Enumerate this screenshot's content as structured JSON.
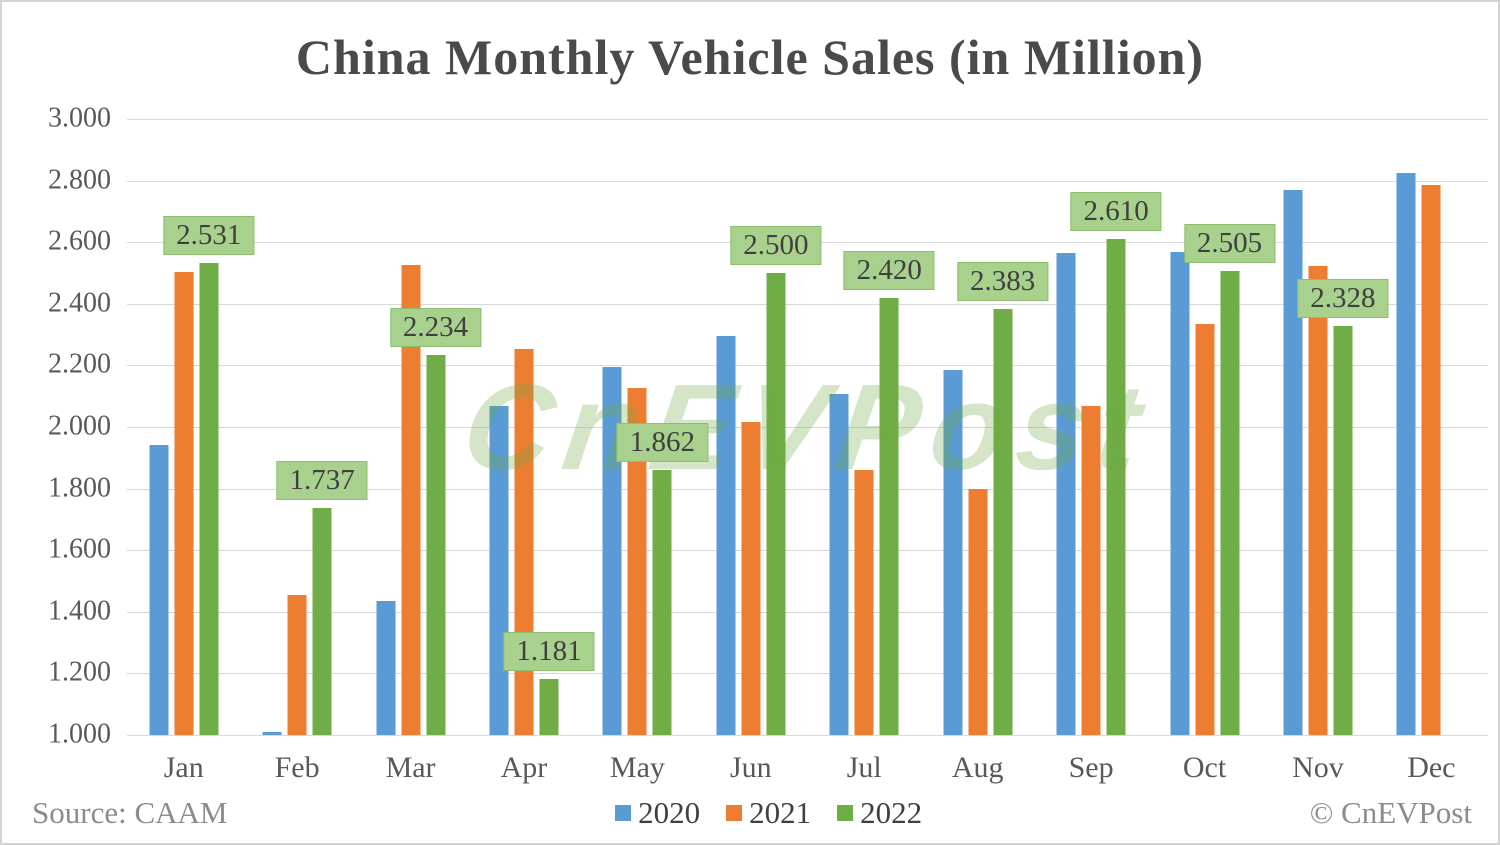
{
  "chart_data": {
    "type": "bar",
    "title": "China Monthly Vehicle Sales (in Million)",
    "categories": [
      "Jan",
      "Feb",
      "Mar",
      "Apr",
      "May",
      "Jun",
      "Jul",
      "Aug",
      "Sep",
      "Oct",
      "Nov",
      "Dec"
    ],
    "series": [
      {
        "name": "2020",
        "color": "#5B9BD5",
        "values": [
          1.941,
          1.01,
          1.436,
          2.068,
          2.194,
          2.296,
          2.108,
          2.186,
          2.565,
          2.567,
          2.77,
          2.825
        ]
      },
      {
        "name": "2021",
        "color": "#ED7D31",
        "values": [
          2.503,
          1.456,
          2.526,
          2.252,
          2.128,
          2.015,
          1.86,
          1.799,
          2.067,
          2.333,
          2.522,
          2.786
        ]
      },
      {
        "name": "2022",
        "color": "#70AD47",
        "values": [
          2.531,
          1.737,
          2.234,
          1.181,
          1.862,
          2.5,
          2.42,
          2.383,
          2.61,
          2.505,
          2.328,
          null
        ]
      }
    ],
    "data_labels": {
      "series": "2022",
      "values": [
        "2.531",
        "1.737",
        "2.234",
        "1.181",
        "1.862",
        "2.500",
        "2.420",
        "2.383",
        "2.610",
        "2.505",
        "2.328",
        null
      ],
      "box_bg": "#A9D18E",
      "box_border": "#8CBE6C",
      "text_color": "#3f3f3f"
    },
    "y_axis": {
      "min": 1.0,
      "max": 3.0,
      "step": 0.2,
      "tick_labels": [
        "3.000",
        "2.800",
        "2.600",
        "2.400",
        "2.200",
        "2.000",
        "1.800",
        "1.600",
        "1.400",
        "1.200",
        "1.000"
      ]
    },
    "grid": true,
    "gridline_color": "#D9D9D9",
    "legend_position": "bottom-center"
  },
  "watermark": {
    "text": "CnEVPost",
    "color": "rgba(112,173,71,0.30)"
  },
  "footer": {
    "source": "Source: CAAM",
    "copyright": "© CnEVPost"
  },
  "colors": {
    "title_text": "#4a4a4a",
    "axis_text": "#595959",
    "footer_text": "#8c8c8c",
    "background": "#FFFFFF",
    "border": "#d4d4d4"
  }
}
